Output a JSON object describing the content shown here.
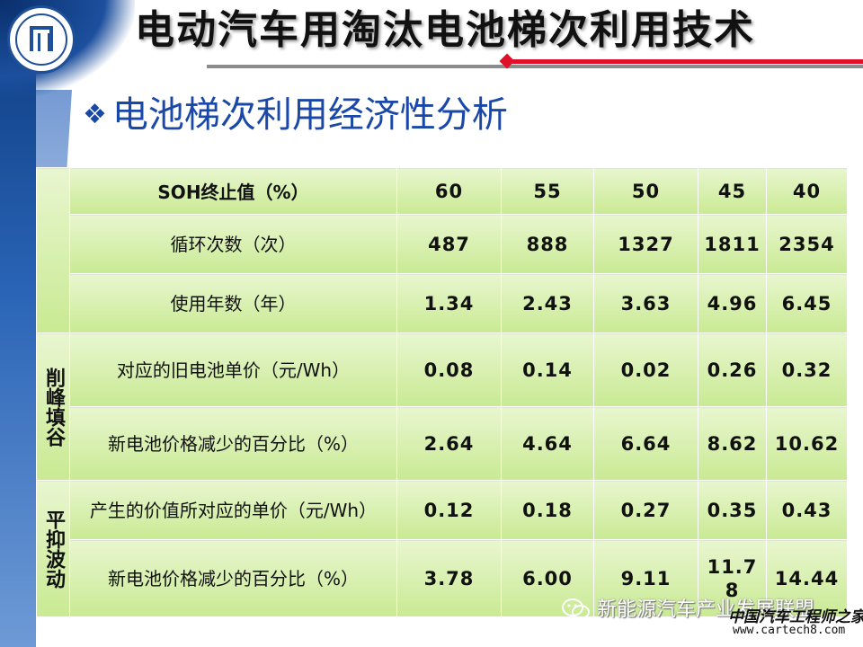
{
  "header": {
    "title": "电动汽车用淘汰电池梯次利用技术"
  },
  "subtitle": {
    "bullet": "❖",
    "text": "电池梯次利用经济性分析"
  },
  "table": {
    "header_label": "SOH终止值（%）",
    "header_values": [
      "60",
      "55",
      "50",
      "45",
      "40"
    ],
    "rows_top": [
      {
        "label": "循环次数（次）",
        "values": [
          "487",
          "888",
          "1327",
          "1811",
          "2354"
        ]
      },
      {
        "label": "使用年数（年）",
        "values": [
          "1.34",
          "2.43",
          "3.63",
          "4.96",
          "6.45"
        ]
      }
    ],
    "groups": [
      {
        "name": "削峰填谷",
        "rows": [
          {
            "label": "对应的旧电池单价（元/Wh）",
            "values": [
              "0.08",
              "0.14",
              "0.02",
              "0.26",
              "0.32"
            ]
          },
          {
            "label": "新电池价格减少的百分比（%）",
            "values": [
              "2.64",
              "4.64",
              "6.64",
              "8.62",
              "10.62"
            ]
          }
        ]
      },
      {
        "name": "平抑波动",
        "rows": [
          {
            "label": "产生的价值所对应的单价（元/Wh）",
            "values": [
              "0.12",
              "0.18",
              "0.27",
              "0.35",
              "0.43"
            ]
          },
          {
            "label": "新电池价格减少的百分比（%）",
            "values": [
              "3.78",
              "6.00",
              "9.11",
              "11.78",
              "14.44"
            ]
          }
        ]
      }
    ]
  },
  "watermark": {
    "text": "新能源汽车产业发展联盟",
    "brand": "中国汽车工程师之家",
    "site": "www.cartech8.com"
  }
}
